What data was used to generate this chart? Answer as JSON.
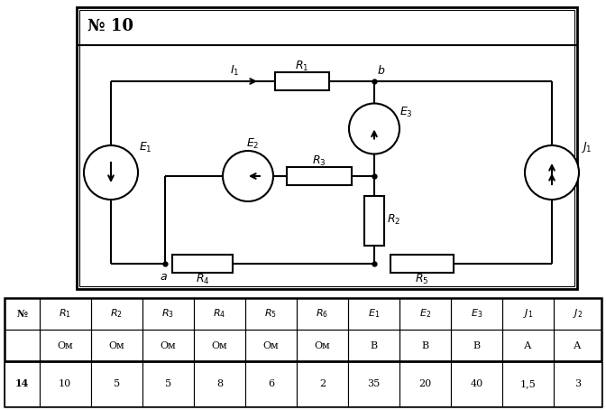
{
  "title": "№ 10",
  "table_headers": [
    "№",
    "R₁",
    "R₂",
    "R₃",
    "R₄",
    "R₅",
    "R₆",
    "E₁",
    "E₂",
    "E₃",
    "J₁",
    "J₂"
  ],
  "table_units": [
    "",
    "Ом",
    "Ом",
    "Ом",
    "Ом",
    "Ом",
    "Ом",
    "В",
    "В",
    "В",
    "А",
    "А"
  ],
  "table_row": [
    "14",
    "10",
    "5",
    "5",
    "8",
    "6",
    "2",
    "35",
    "20",
    "40",
    "1,5",
    "3"
  ],
  "line_color": "#000000",
  "bg_color": "#ffffff",
  "lw": 1.5
}
